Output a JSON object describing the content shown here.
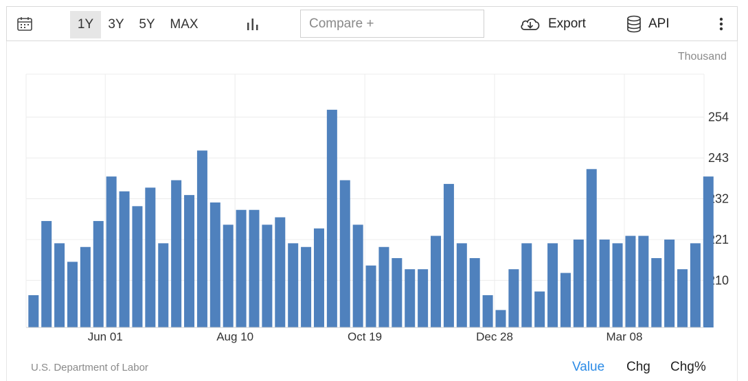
{
  "toolbar": {
    "ranges": [
      "1Y",
      "3Y",
      "5Y",
      "MAX"
    ],
    "active_range": "1Y",
    "compare_placeholder": "Compare +",
    "export_label": "Export",
    "api_label": "API"
  },
  "icons": {
    "calendar": "calendar-icon",
    "chart_type": "bar-chart-icon",
    "export": "cloud-download-icon",
    "api": "database-icon",
    "menu": "more-vertical-icon"
  },
  "colors": {
    "bar": "#4f81bd",
    "active_tab": "#2b8be6"
  },
  "footer": {
    "source": "U.S. Department of Labor",
    "tabs": [
      "Value",
      "Chg",
      "Chg%"
    ],
    "active_tab": "Value"
  },
  "chart_data": {
    "type": "bar",
    "unit": "Thousand",
    "ylim": [
      197.3,
      265.6
    ],
    "yticks": [
      210,
      221,
      232,
      243,
      254
    ],
    "xticks": [
      "Jun 01",
      "Aug 10",
      "Oct 19",
      "Dec 28",
      "Mar 08"
    ],
    "xtick_bar_index": [
      5,
      15,
      25,
      35,
      45
    ],
    "grid": true,
    "values": [
      206,
      226,
      220,
      215,
      219,
      226,
      238,
      234,
      230,
      235,
      220,
      237,
      233,
      245,
      231,
      225,
      229,
      229,
      225,
      227,
      220,
      219,
      224,
      256,
      237,
      225,
      214,
      219,
      216,
      213,
      213,
      222,
      236,
      220,
      216,
      206,
      202,
      213,
      220,
      207,
      220,
      212,
      221,
      240,
      221,
      220,
      222,
      222,
      216,
      221,
      213,
      220,
      238
    ]
  }
}
